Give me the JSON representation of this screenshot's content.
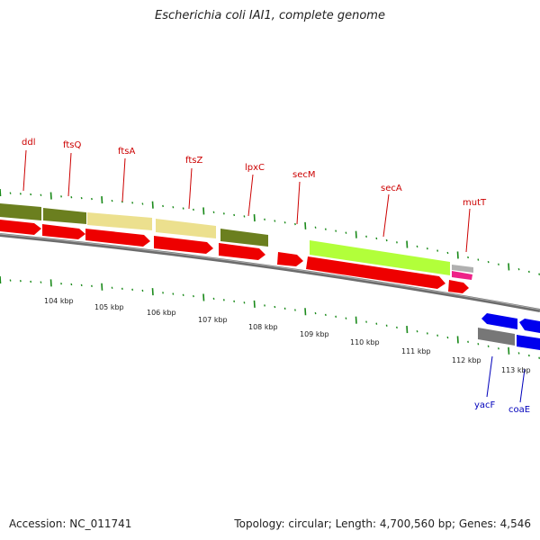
{
  "title": "Escherichia coli IAI1, complete genome",
  "footer": {
    "accession": "Accession: NC_011741",
    "summary": "Topology: circular; Length: 4,700,560 bp; Genes: 4,546"
  },
  "colors": {
    "forward_label": "#cc0000",
    "reverse_label": "#0000bb",
    "cds_red": "#ee0000",
    "olive": "#6b7f1f",
    "khaki": "#ece08e",
    "lime": "#b2ff3a",
    "gray": "#777777",
    "blue": "#0000ee",
    "pink": "#ee2288",
    "tick_green": "#1a8a1a",
    "backbone": "#808080"
  },
  "genes": [
    {
      "name": "ddl",
      "strand": "forward"
    },
    {
      "name": "ftsQ",
      "strand": "forward"
    },
    {
      "name": "ftsA",
      "strand": "forward"
    },
    {
      "name": "ftsZ",
      "strand": "forward"
    },
    {
      "name": "lpxC",
      "strand": "forward"
    },
    {
      "name": "secM",
      "strand": "forward"
    },
    {
      "name": "secA",
      "strand": "forward"
    },
    {
      "name": "mutT",
      "strand": "forward"
    },
    {
      "name": "yacF",
      "strand": "reverse"
    },
    {
      "name": "coaE",
      "strand": "reverse"
    }
  ],
  "scale_labels": [
    "104 kbp",
    "105 kbp",
    "106 kbp",
    "107 kbp",
    "108 kbp",
    "109 kbp",
    "110 kbp",
    "111 kbp",
    "112 kbp",
    "113 kbp"
  ]
}
